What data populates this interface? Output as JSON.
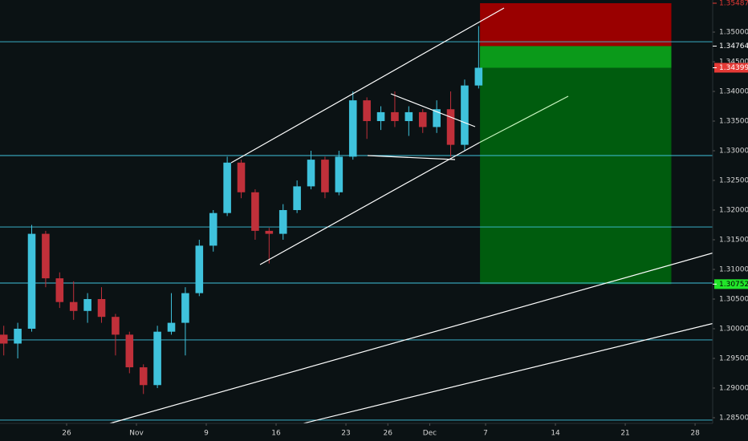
{
  "chart_data": {
    "type": "candlestick",
    "x": [
      -4.5,
      -3.5,
      -2.5,
      -1.5,
      -0.5,
      0.5,
      1.5,
      2.5,
      3.5,
      4.5,
      5.5,
      6.5,
      7.5,
      8.5,
      9.5,
      10.5,
      11.5,
      12.5,
      13.5,
      14.5,
      15.5,
      16.5,
      17.5,
      18.5,
      19.5,
      20.5,
      21.5,
      22.5,
      23.5,
      24.5,
      25.5,
      26.5,
      27.5,
      28.5,
      29.5
    ],
    "open": [
      1.299,
      1.2975,
      1.3,
      1.316,
      1.3085,
      1.3045,
      1.303,
      1.305,
      1.302,
      1.299,
      1.2935,
      1.2905,
      1.2995,
      1.301,
      1.306,
      1.314,
      1.3195,
      1.328,
      1.323,
      1.3165,
      1.316,
      1.32,
      1.324,
      1.3285,
      1.323,
      1.329,
      1.3385,
      1.335,
      1.3365,
      1.335,
      1.3365,
      1.334,
      1.337,
      1.331,
      1.341
    ],
    "high": [
      1.3005,
      1.301,
      1.3175,
      1.3165,
      1.3095,
      1.308,
      1.306,
      1.307,
      1.3025,
      1.2995,
      1.294,
      1.3005,
      1.306,
      1.307,
      1.315,
      1.32,
      1.329,
      1.3285,
      1.3235,
      1.317,
      1.321,
      1.325,
      1.33,
      1.329,
      1.33,
      1.34,
      1.339,
      1.3375,
      1.34,
      1.3375,
      1.337,
      1.3385,
      1.34,
      1.342,
      1.351
    ],
    "low": [
      1.2955,
      1.295,
      1.2995,
      1.307,
      1.3035,
      1.3015,
      1.301,
      1.301,
      1.2955,
      1.2925,
      1.289,
      1.29,
      1.299,
      1.2955,
      1.3055,
      1.313,
      1.319,
      1.322,
      1.315,
      1.311,
      1.315,
      1.3195,
      1.3235,
      1.322,
      1.3225,
      1.3285,
      1.332,
      1.3335,
      1.334,
      1.3325,
      1.333,
      1.333,
      1.329,
      1.33,
      1.3405
    ],
    "close": [
      1.2975,
      1.3,
      1.316,
      1.3085,
      1.3045,
      1.303,
      1.305,
      1.302,
      1.299,
      1.2935,
      1.2905,
      1.2995,
      1.301,
      1.306,
      1.314,
      1.3195,
      1.328,
      1.323,
      1.3165,
      1.316,
      1.32,
      1.324,
      1.3285,
      1.323,
      1.329,
      1.3385,
      1.335,
      1.3365,
      1.335,
      1.3365,
      1.334,
      1.337,
      1.331,
      1.341,
      1.34399
    ],
    "up_color": "#3fc2dc",
    "down_color": "#c0303a",
    "xlim": [
      -4.77,
      46.26
    ],
    "ylim": [
      1.28405,
      1.35541
    ],
    "xticks": [
      {
        "value": 0,
        "label": "26"
      },
      {
        "value": 5,
        "label": "Nov"
      },
      {
        "value": 10,
        "label": "9"
      },
      {
        "value": 15,
        "label": "16"
      },
      {
        "value": 20,
        "label": "23"
      },
      {
        "value": 23,
        "label": "26"
      },
      {
        "value": 26,
        "label": "Dec"
      },
      {
        "value": 30,
        "label": "7"
      },
      {
        "value": 35,
        "label": "14"
      },
      {
        "value": 40,
        "label": "21"
      },
      {
        "value": 45,
        "label": "28"
      }
    ],
    "yticks": [
      {
        "value": 1.285,
        "label": "1.28500"
      },
      {
        "value": 1.29,
        "label": "1.29000"
      },
      {
        "value": 1.295,
        "label": "1.29500"
      },
      {
        "value": 1.3,
        "label": "1.30000"
      },
      {
        "value": 1.305,
        "label": "1.30500"
      },
      {
        "value": 1.31,
        "label": "1.31000"
      },
      {
        "value": 1.315,
        "label": "1.31500"
      },
      {
        "value": 1.32,
        "label": "1.32000"
      },
      {
        "value": 1.325,
        "label": "1.32500"
      },
      {
        "value": 1.33,
        "label": "1.33000"
      },
      {
        "value": 1.335,
        "label": "1.33500"
      },
      {
        "value": 1.34,
        "label": "1.34000"
      },
      {
        "value": 1.345,
        "label": "1.34500"
      },
      {
        "value": 1.35,
        "label": "1.35000"
      }
    ],
    "levels": [
      1.34838,
      1.32919,
      1.31716,
      1.3077,
      1.29811,
      1.2846
    ],
    "level_color": "#3fc2dc",
    "trade": {
      "start": 29.6,
      "end": 43.3,
      "stop": 1.35487,
      "entry": 1.34764,
      "target": 1.30752
    },
    "markers": [
      {
        "value": 1.35487,
        "color": "#e53935",
        "fill": false
      },
      {
        "value": 1.34764,
        "color": "#ffffff",
        "fill": false
      },
      {
        "value": 1.34399,
        "color": "#e53935",
        "fill": true
      },
      {
        "value": 1.30752,
        "color": "#22e52a",
        "fill": true
      }
    ]
  }
}
